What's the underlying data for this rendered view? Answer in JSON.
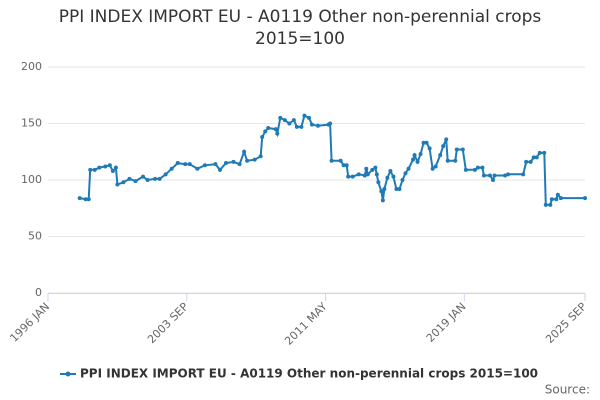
{
  "chart_data": {
    "type": "line",
    "title": "PPI INDEX IMPORT EU - A0119 Other non-perennial crops 2015=100",
    "source_label": "Source:",
    "x": [
      "1997 OCT",
      "1998 FEB",
      "1998 APR",
      "1998 MAY",
      "1998 AUG",
      "1998 NOV",
      "1999 MAR",
      "1999 JUN",
      "1999 AUG",
      "1999 OCT",
      "1999 NOV",
      "2000 MAR",
      "2000 JUL",
      "2000 NOV",
      "2001 APR",
      "2001 JUL",
      "2001 DEC",
      "2002 MAR",
      "2002 JUL",
      "2002 NOV",
      "2003 MAR",
      "2003 AUG",
      "2003 NOV",
      "2004 APR",
      "2004 SEP",
      "2005 APR",
      "2005 JUL",
      "2005 NOV",
      "2006 APR",
      "2006 AUG",
      "2006 NOV",
      "2007 JAN",
      "2007 JUN",
      "2007 OCT",
      "2007 NOV",
      "2008 JAN",
      "2008 MAR",
      "2008 AUG",
      "2008 SEP",
      "2008 NOV",
      "2009 FEB",
      "2009 MAY",
      "2009 AUG",
      "2009 OCT",
      "2010 JAN",
      "2010 MAR",
      "2010 JUN",
      "2010 AUG",
      "2010 DEC",
      "2011 JUL",
      "2011 AUG",
      "2011 SEP",
      "2012 MAR",
      "2012 MAY",
      "2012 JUL",
      "2012 AUG",
      "2012 NOV",
      "2013 MAR",
      "2013 JUL",
      "2013 AUG",
      "2013 SEP",
      "2013 DEC",
      "2014 FEB",
      "2014 MAR",
      "2014 APR",
      "2014 JUN",
      "2014 JUL",
      "2014 AUG",
      "2014 OCT",
      "2014 DEC",
      "2015 FEB",
      "2015 APR",
      "2015 JUN",
      "2015 AUG",
      "2015 OCT",
      "2015 DEC",
      "2016 MAR",
      "2016 APR",
      "2016 JUN",
      "2016 AUG",
      "2016 OCT",
      "2016 DEC",
      "2017 FEB",
      "2017 APR",
      "2017 JUN",
      "2017 SEP",
      "2017 NOV",
      "2018 JAN",
      "2018 FEB",
      "2018 JUL",
      "2018 AUG",
      "2018 DEC",
      "2019 FEB",
      "2019 AUG",
      "2019 OCT",
      "2020 JAN",
      "2020 FEB",
      "2020 JUN",
      "2020 AUG",
      "2020 SEP",
      "2021 APR",
      "2021 JUN",
      "2022 APR",
      "2022 JUN",
      "2022 SEP",
      "2022 NOV",
      "2023 JAN",
      "2023 MAR",
      "2023 JUN",
      "2023 JUL",
      "2023 OCT",
      "2023 NOV",
      "2024 FEB",
      "2024 MAR",
      "2024 MAY",
      "2025 SEP"
    ],
    "series": [
      {
        "name": "PPI INDEX IMPORT EU - A0119 Other non-perennial crops 2015=100",
        "color": "#1f7bb6",
        "values": [
          84,
          83,
          83,
          109,
          109,
          111,
          112,
          113,
          108,
          111,
          96,
          98,
          101,
          99,
          103,
          100,
          101,
          101,
          105,
          110,
          115,
          114,
          114,
          110,
          113,
          114,
          109,
          115,
          116,
          114,
          125,
          117,
          118,
          121,
          138,
          143,
          146,
          145,
          141,
          155,
          153,
          150,
          153,
          147,
          147,
          157,
          155,
          149,
          148,
          149,
          150,
          117,
          117,
          113,
          113,
          103,
          103,
          105,
          104,
          110,
          105,
          109,
          111,
          105,
          98,
          90,
          82,
          92,
          102,
          108,
          103,
          92,
          92,
          100,
          106,
          110,
          118,
          122,
          116,
          123,
          133,
          133,
          128,
          110,
          112,
          122,
          130,
          136,
          117,
          117,
          127,
          127,
          109,
          109,
          111,
          111,
          104,
          104,
          100,
          104,
          104,
          105,
          105,
          116,
          116,
          120,
          120,
          124,
          124,
          78,
          78,
          83,
          83,
          87,
          84,
          84
        ]
      }
    ],
    "xlim": [
      "1996 JAN",
      "2025 SEP"
    ],
    "xticks": [
      "1996 JAN",
      "2003 SEP",
      "2011 MAY",
      "2019 JAN",
      "2025 SEP"
    ],
    "ylim": [
      0,
      200
    ],
    "yticks": [
      0,
      50,
      100,
      150,
      200
    ],
    "grid": true
  }
}
